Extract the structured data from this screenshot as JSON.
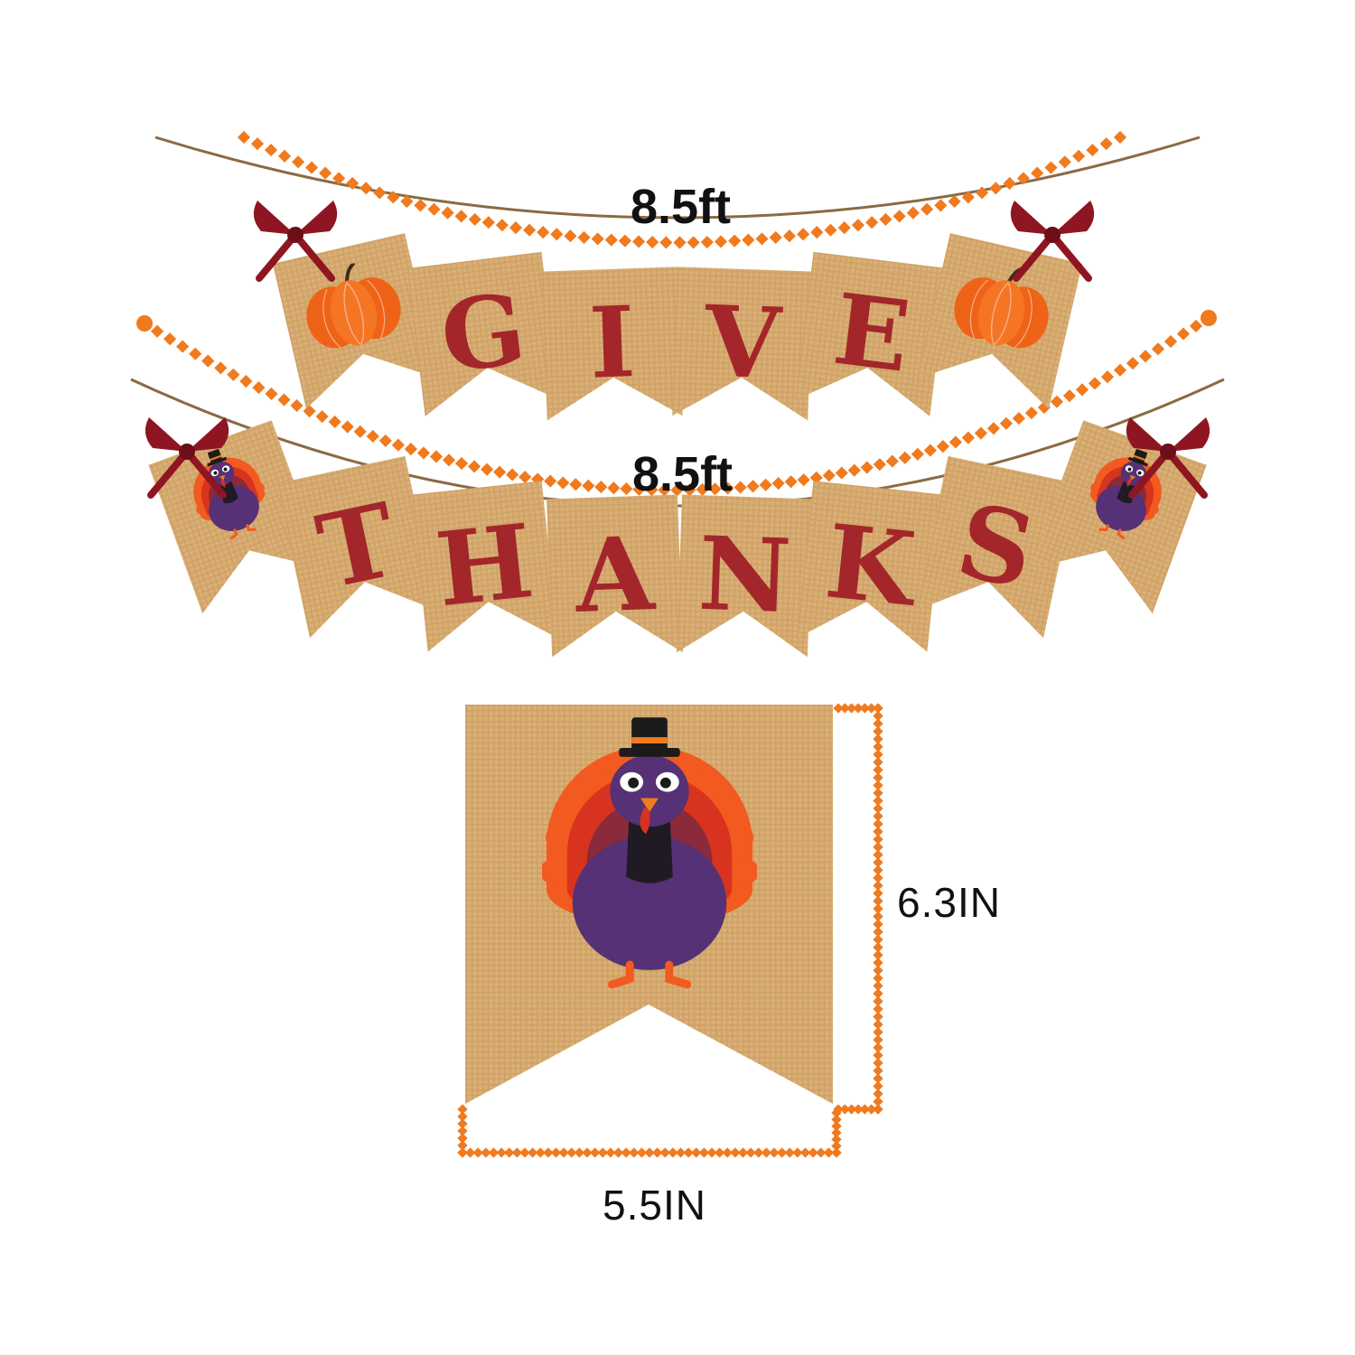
{
  "colors": {
    "burlap": "#d8ad73",
    "burlap_dark": "#c39558",
    "letter_red": "#a3262b",
    "bow_red": "#8e1622",
    "pumpkin_orange": "#f26a1b",
    "dot_orange": "#f07a1e",
    "turkey_purple": "#563175",
    "turkey_red": "#d8331f",
    "twine": "#8a6a42"
  },
  "garland_top": {
    "length_label": "8.5ft",
    "pennants": [
      {
        "kind": "icon",
        "icon": "pumpkin-icon"
      },
      {
        "kind": "letter",
        "text": "G"
      },
      {
        "kind": "letter",
        "text": "I"
      },
      {
        "kind": "letter",
        "text": "V"
      },
      {
        "kind": "letter",
        "text": "E"
      },
      {
        "kind": "icon",
        "icon": "pumpkin-icon"
      }
    ]
  },
  "garland_bottom": {
    "length_label": "8.5ft",
    "pennants": [
      {
        "kind": "icon",
        "icon": "turkey-icon"
      },
      {
        "kind": "letter",
        "text": "T"
      },
      {
        "kind": "letter",
        "text": "H"
      },
      {
        "kind": "letter",
        "text": "A"
      },
      {
        "kind": "letter",
        "text": "N"
      },
      {
        "kind": "letter",
        "text": "K"
      },
      {
        "kind": "letter",
        "text": "S"
      },
      {
        "kind": "icon",
        "icon": "turkey-icon"
      }
    ]
  },
  "detail_pennant": {
    "icon": "turkey-icon",
    "height_label": "6.3IN",
    "width_label": "5.5IN"
  }
}
